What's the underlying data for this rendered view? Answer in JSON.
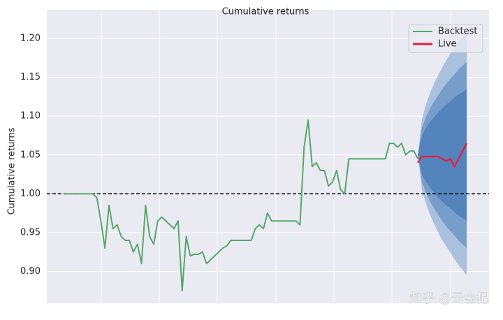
{
  "chart_data": {
    "type": "line",
    "title": "Cumulative returns",
    "y_label": "Cumulative returns",
    "ylim": [
      0.859,
      1.237
    ],
    "yticks": [
      {
        "value": 0.9,
        "label": "0.90"
      },
      {
        "value": 0.95,
        "label": "0.95"
      },
      {
        "value": 1.0,
        "label": "1.00"
      },
      {
        "value": 1.05,
        "label": "1.05"
      },
      {
        "value": 1.1,
        "label": "1.10"
      },
      {
        "value": 1.15,
        "label": "1.15"
      },
      {
        "value": 1.2,
        "label": "1.20"
      }
    ],
    "grid": true,
    "legend": "upper right",
    "hline": 1.0,
    "watermark": "知乎 @云金杞",
    "series": [
      {
        "name": "Backtest",
        "color": "#55a868",
        "values": [
          1.0,
          1.0,
          1.0,
          1.0,
          1.0,
          1.0,
          1.0,
          1.0,
          0.995,
          0.965,
          0.93,
          0.985,
          0.955,
          0.96,
          0.945,
          0.94,
          0.94,
          0.925,
          0.935,
          0.91,
          0.985,
          0.945,
          0.935,
          0.965,
          0.97,
          0.965,
          0.96,
          0.955,
          0.965,
          0.875,
          0.945,
          0.92,
          0.922,
          0.922,
          0.925,
          0.91,
          0.915,
          0.92,
          0.925,
          0.93,
          0.933,
          0.94,
          0.94,
          0.94,
          0.94,
          0.94,
          0.94,
          0.955,
          0.96,
          0.955,
          0.975,
          0.965,
          0.965,
          0.965,
          0.965,
          0.965,
          0.965,
          0.965,
          0.96,
          1.06,
          1.095,
          1.035,
          1.04,
          1.03,
          1.03,
          1.01,
          1.015,
          1.03,
          1.005,
          1.0,
          1.045,
          1.045,
          1.045,
          1.045,
          1.045,
          1.045,
          1.045,
          1.045,
          1.045,
          1.045,
          1.065,
          1.065,
          1.06,
          1.065,
          1.05,
          1.055,
          1.055,
          1.045,
          null,
          null,
          null,
          null,
          null,
          null,
          null,
          null,
          null,
          null,
          null,
          null
        ]
      },
      {
        "name": "Live",
        "color": "#e0204a",
        "values": [
          null,
          null,
          null,
          null,
          null,
          null,
          null,
          null,
          null,
          null,
          null,
          null,
          null,
          null,
          null,
          null,
          null,
          null,
          null,
          null,
          null,
          null,
          null,
          null,
          null,
          null,
          null,
          null,
          null,
          null,
          null,
          null,
          null,
          null,
          null,
          null,
          null,
          null,
          null,
          null,
          null,
          null,
          null,
          null,
          null,
          null,
          null,
          null,
          null,
          null,
          null,
          null,
          null,
          null,
          null,
          null,
          null,
          null,
          null,
          null,
          null,
          null,
          null,
          null,
          null,
          null,
          null,
          null,
          null,
          null,
          null,
          null,
          null,
          null,
          null,
          null,
          null,
          null,
          null,
          null,
          null,
          null,
          null,
          null,
          null,
          null,
          null,
          1.04,
          1.048,
          1.048,
          1.048,
          1.048,
          1.048,
          1.045,
          1.042,
          1.045,
          1.035,
          1.045,
          1.055,
          1.065
        ],
        "cone": [
          {
            "color": "#a3bddc",
            "upper": [
              1.05,
              1.096,
              1.115,
              1.13,
              1.142,
              1.153,
              1.163,
              1.172,
              1.181,
              1.189,
              1.196,
              1.203,
              1.21
            ],
            "lower": [
              1.05,
              1.005,
              0.987,
              0.973,
              0.961,
              0.95,
              0.94,
              0.932,
              0.924,
              0.916,
              0.908,
              0.902,
              0.895
            ]
          },
          {
            "color": "#7199c9",
            "upper": [
              1.05,
              1.085,
              1.099,
              1.11,
              1.119,
              1.127,
              1.135,
              1.142,
              1.148,
              1.154,
              1.16,
              1.165,
              1.17
            ],
            "lower": [
              1.05,
              1.015,
              1.001,
              0.99,
              0.981,
              0.973,
              0.965,
              0.958,
              0.952,
              0.946,
              0.94,
              0.935,
              0.93
            ]
          },
          {
            "color": "#4f83ba",
            "upper": [
              1.05,
              1.075,
              1.085,
              1.093,
              1.099,
              1.105,
              1.11,
              1.115,
              1.119,
              1.124,
              1.128,
              1.131,
              1.135
            ],
            "lower": [
              1.05,
              1.025,
              1.015,
              1.008,
              1.001,
              0.995,
              0.99,
              0.985,
              0.981,
              0.976,
              0.972,
              0.969,
              0.965
            ]
          }
        ]
      }
    ]
  }
}
